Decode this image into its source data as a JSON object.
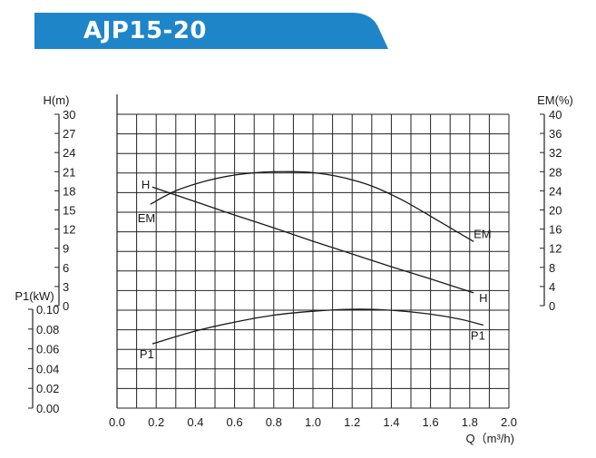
{
  "title": "AJP15-20",
  "colors": {
    "banner": "#1f85c9",
    "grid": "#222222",
    "curve": "#1a1a1a"
  },
  "chart_data": {
    "type": "line",
    "xlabel": "Q（m³/h)",
    "xlim": [
      0,
      2.0
    ],
    "xticks": [
      "0.0",
      "0.2",
      "0.4",
      "0.6",
      "0.8",
      "1.0",
      "1.2",
      "1.4",
      "1.6",
      "1.8",
      "2.0"
    ],
    "grid": true,
    "axes": {
      "h": {
        "label": "H(m)",
        "range": [
          0,
          30
        ],
        "ticks": [
          "30",
          "27",
          "24",
          "21",
          "18",
          "15",
          "12",
          "9",
          "6",
          "3",
          "0"
        ]
      },
      "em": {
        "label": "EM(%)",
        "range": [
          0,
          40
        ],
        "ticks": [
          "40",
          "36",
          "32",
          "28",
          "24",
          "20",
          "16",
          "12",
          "8",
          "4",
          "0"
        ]
      },
      "p1": {
        "label": "P1(kW)",
        "range": [
          0,
          0.1
        ],
        "ticks": [
          "0.10",
          "0.08",
          "0.06",
          "0.04",
          "0.02",
          "0.00"
        ]
      }
    },
    "series": [
      {
        "name": "H",
        "axis": "h",
        "x": [
          0.18,
          0.4,
          0.6,
          0.8,
          1.0,
          1.2,
          1.4,
          1.6,
          1.82
        ],
        "y": [
          18.6,
          16.3,
          14.2,
          12.2,
          10.1,
          8.1,
          6.1,
          4.2,
          2.0
        ]
      },
      {
        "name": "EM",
        "axis": "em",
        "x": [
          0.17,
          0.3,
          0.45,
          0.6,
          0.75,
          0.88,
          1.0,
          1.15,
          1.3,
          1.45,
          1.6,
          1.72,
          1.82
        ],
        "y": [
          21.2,
          24.0,
          26.0,
          27.3,
          27.9,
          28.0,
          27.8,
          26.8,
          25.0,
          22.2,
          18.7,
          15.8,
          13.4
        ]
      },
      {
        "name": "P1",
        "axis": "p1",
        "x": [
          0.18,
          0.4,
          0.6,
          0.8,
          1.0,
          1.2,
          1.4,
          1.6,
          1.75,
          1.87
        ],
        "y": [
          0.065,
          0.078,
          0.087,
          0.094,
          0.098,
          0.1,
          0.099,
          0.095,
          0.09,
          0.084
        ]
      }
    ]
  }
}
